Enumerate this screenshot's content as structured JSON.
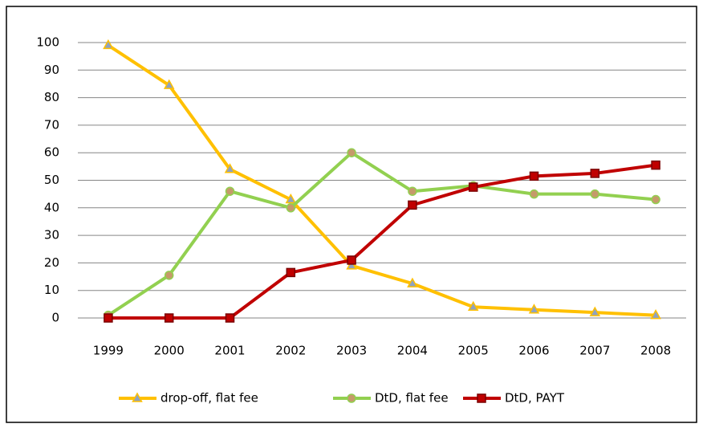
{
  "chart_data": {
    "type": "line",
    "categories": [
      "1999",
      "2000",
      "2001",
      "2002",
      "2003",
      "2004",
      "2005",
      "2006",
      "2007",
      "2008"
    ],
    "series": [
      {
        "name": "drop-off, flat fee",
        "color": "#ffc000",
        "marker": "triangle",
        "marker_fill": "#8fa2bf",
        "values": [
          99,
          84.5,
          54,
          43,
          19,
          12.5,
          4,
          3,
          2,
          1
        ]
      },
      {
        "name": "DtD, flat fee",
        "color": "#92d050",
        "marker": "circle",
        "marker_fill": "#c59a6a",
        "values": [
          1,
          15.5,
          46,
          40,
          60,
          46,
          48,
          45,
          45,
          43
        ]
      },
      {
        "name": "DtD, PAYT",
        "color": "#c00000",
        "marker": "square",
        "marker_fill": "#c00000",
        "values": [
          0,
          0,
          0,
          16.5,
          21,
          41,
          47.5,
          51.5,
          52.5,
          55.5
        ]
      }
    ],
    "ylim": [
      0,
      100
    ],
    "yticks": [
      0,
      10,
      20,
      30,
      40,
      50,
      60,
      70,
      80,
      90,
      100
    ],
    "grid": true,
    "legend": "bottom"
  }
}
